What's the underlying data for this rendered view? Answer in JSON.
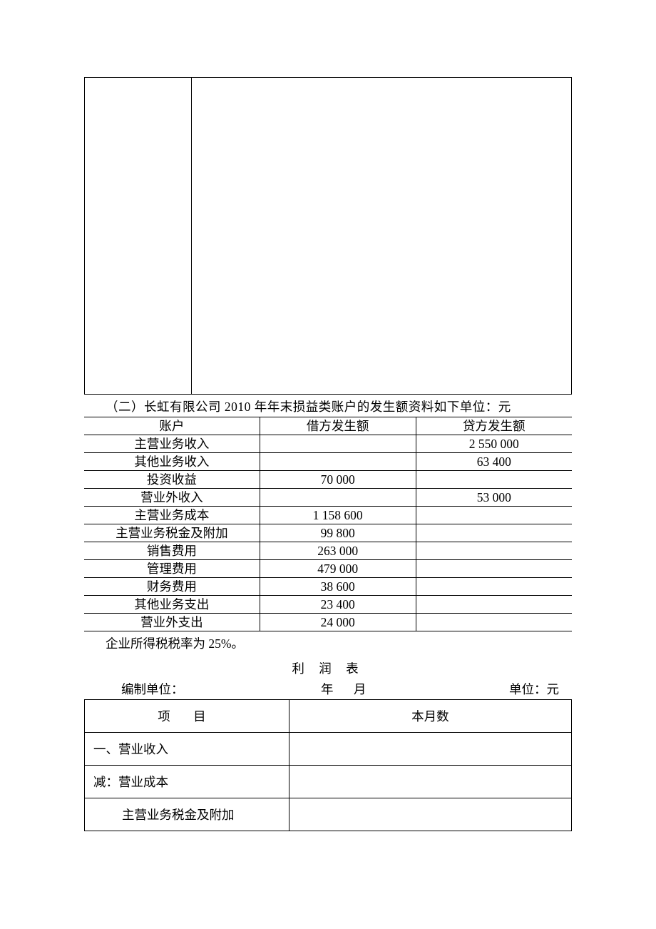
{
  "intro": "（二）长虹有限公司 2010 年年末损益类账户的发生额资料如下单位：元",
  "accounts": {
    "headers": {
      "account": "账户",
      "debit": "借方发生额",
      "credit": "贷方发生额"
    },
    "rows": [
      {
        "account": "主营业务收入",
        "debit": "",
        "credit": "2 550 000"
      },
      {
        "account": "其他业务收入",
        "debit": "",
        "credit": "63 400"
      },
      {
        "account": "投资收益",
        "debit": "70 000",
        "credit": ""
      },
      {
        "account": "营业外收入",
        "debit": "",
        "credit": "53 000"
      },
      {
        "account": "主营业务成本",
        "debit": "1 158 600",
        "credit": ""
      },
      {
        "account": "主营业务税金及附加",
        "debit": "99 800",
        "credit": ""
      },
      {
        "account": "销售费用",
        "debit": "263 000",
        "credit": ""
      },
      {
        "account": "管理费用",
        "debit": "479 000",
        "credit": ""
      },
      {
        "account": "财务费用",
        "debit": "38 600",
        "credit": ""
      },
      {
        "account": "其他业务支出",
        "debit": "23 400",
        "credit": ""
      },
      {
        "account": "营业外支出",
        "debit": "24 000",
        "credit": ""
      }
    ]
  },
  "tax_note": "企业所得税税率为 25%。",
  "profit": {
    "title": "利 润 表",
    "header": {
      "left": "编制单位：",
      "mid": "年  月",
      "right": "单位：元"
    },
    "columns": {
      "item": "项  目",
      "month": "本月数"
    },
    "rows": [
      {
        "label": "一、营业收入",
        "value": ""
      },
      {
        "label": "减：营业成本",
        "value": ""
      },
      {
        "label": "主营业务税金及附加",
        "value": "",
        "indent": true
      }
    ]
  },
  "colors": {
    "text": "#000000",
    "bg": "#ffffff",
    "border": "#000000"
  }
}
